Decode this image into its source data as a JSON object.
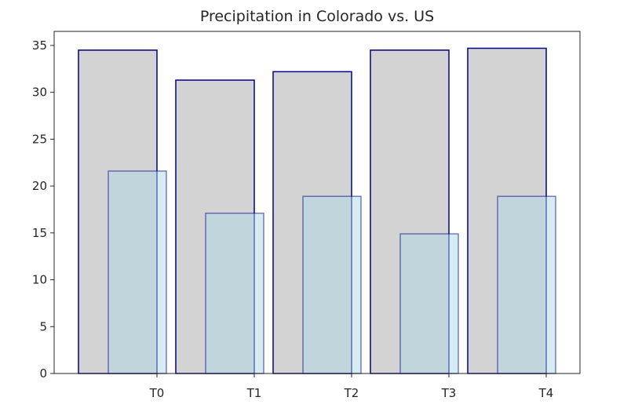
{
  "chart_data": {
    "type": "bar",
    "title": "Precipitation in Colorado vs. US",
    "categories": [
      "T0",
      "T1",
      "T2",
      "T3",
      "T4"
    ],
    "series": [
      {
        "values": [
          34.5,
          31.3,
          32.2,
          34.5,
          34.7
        ],
        "color": "#d3d3d3",
        "edge": "#00008b"
      },
      {
        "values": [
          21.6,
          17.1,
          18.9,
          14.9,
          18.9
        ],
        "color": "#add8e6",
        "edge": "#00008b"
      }
    ],
    "xlabel": "",
    "ylabel": "",
    "ylim": [
      0,
      36.5
    ],
    "yticks": [
      0,
      5,
      10,
      15,
      20,
      25,
      30,
      35
    ],
    "grid": false
  }
}
